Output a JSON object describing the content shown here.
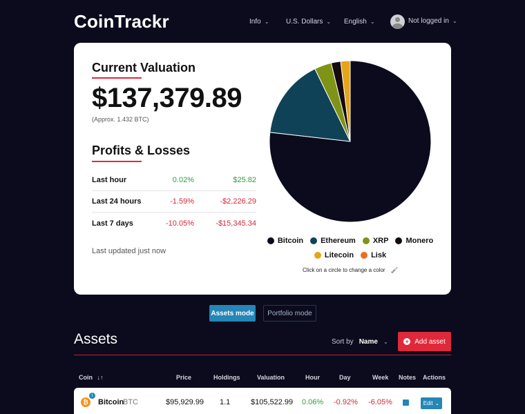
{
  "header": {
    "logo": "CoinTrackr",
    "nav": {
      "info": "Info",
      "currency": "U.S. Dollars",
      "language": "English",
      "user": "Not logged in"
    }
  },
  "valuation": {
    "title": "Current Valuation",
    "amount": "$137,379.89",
    "approx": "(Approx. 1.432 BTC)"
  },
  "profits": {
    "title": "Profits & Losses",
    "rows": [
      {
        "label": "Last hour",
        "pct": "0.02%",
        "abs": "$25.82",
        "positive": true
      },
      {
        "label": "Last 24 hours",
        "pct": "-1.59%",
        "abs": "-$2,226.29",
        "positive": false
      },
      {
        "label": "Last 7 days",
        "pct": "-10.05%",
        "abs": "-$15,345.34",
        "positive": false
      }
    ],
    "updated": "Last updated just now"
  },
  "chart_data": {
    "type": "pie",
    "categories": [
      "Bitcoin",
      "Ethereum",
      "XRP",
      "Monero",
      "Litecoin",
      "Lisk"
    ],
    "values": [
      76.8,
      16.0,
      3.4,
      1.9,
      1.9,
      0.0
    ],
    "colors": [
      "#0b0b1d",
      "#0f4257",
      "#7f9316",
      "#150a0f",
      "#e6a417",
      "#f26a21"
    ],
    "legend_position": "bottom",
    "title": ""
  },
  "hint": "Click on a circle to change a color",
  "modes": {
    "assets": "Assets mode",
    "portfolio": "Portfolio mode"
  },
  "assets": {
    "title": "Assets",
    "sort_label": "Sort by",
    "sort_value": "Name",
    "add_label": "Add asset",
    "columns": [
      "Coin",
      "Price",
      "Holdings",
      "Valuation",
      "Hour",
      "Day",
      "Week",
      "Notes",
      "Actions"
    ],
    "rows": [
      {
        "name": "Bitcoin",
        "symbol": "BTC",
        "price": "$95,929.99",
        "holdings": "1.1",
        "valuation": "$105,522.99",
        "hour": "0.06%",
        "day": "-0.92%",
        "week": "-6.05%",
        "action": "Edit"
      }
    ]
  }
}
